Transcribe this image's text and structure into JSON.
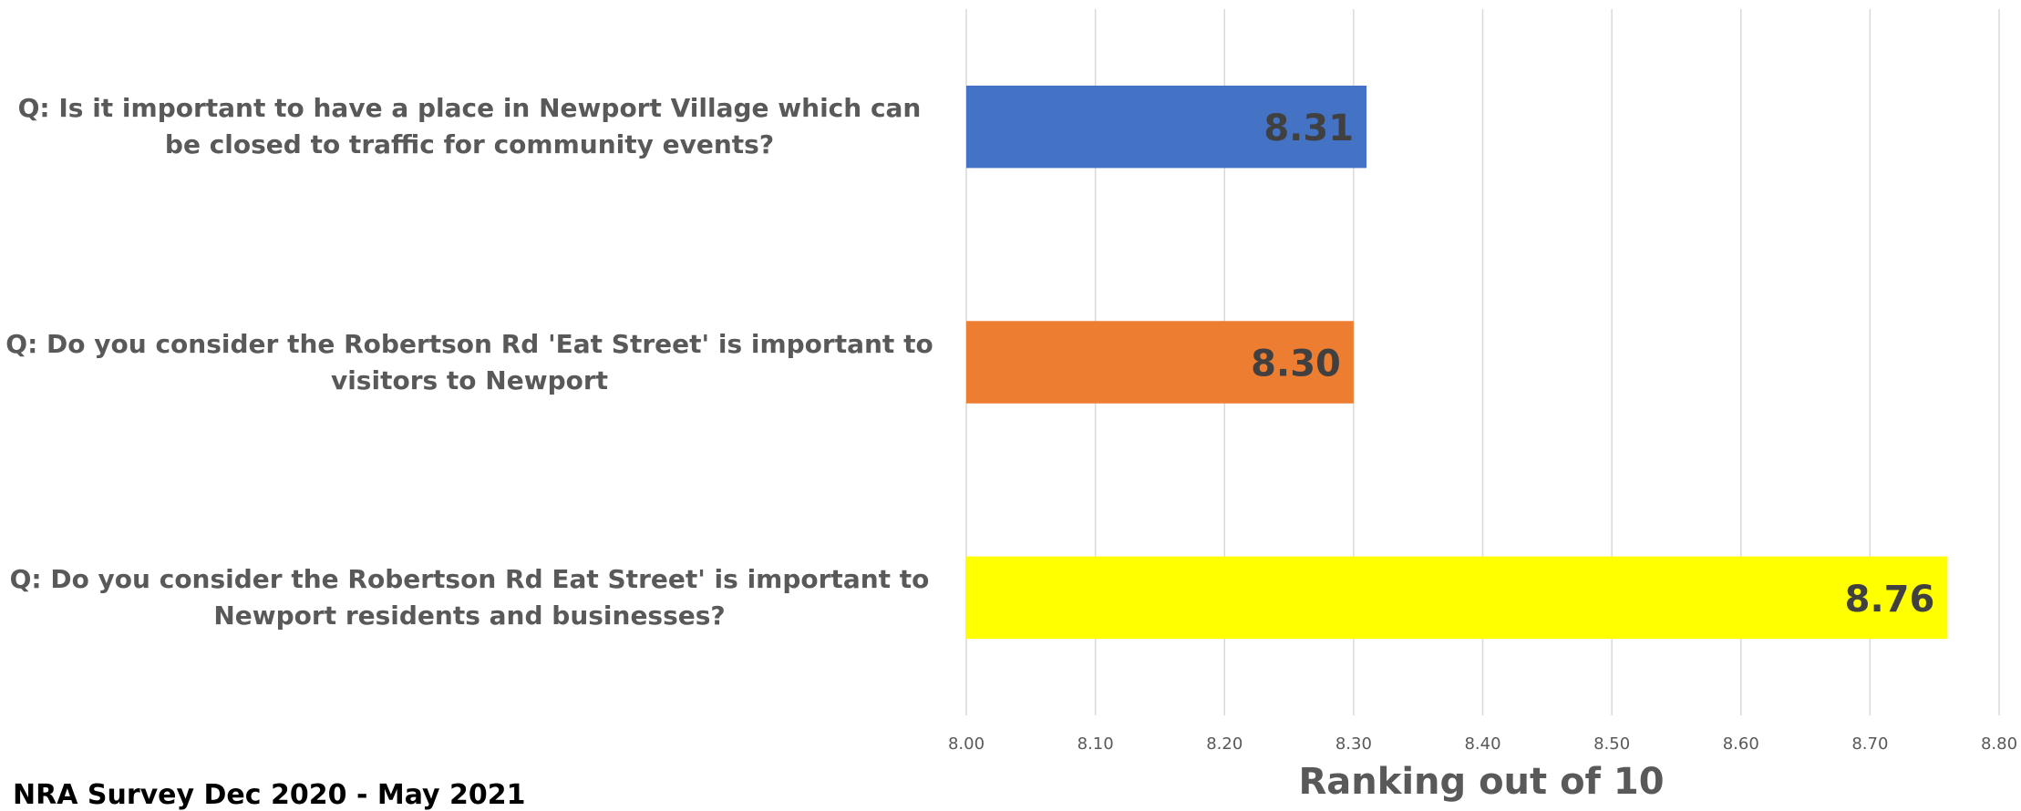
{
  "chart_data": {
    "type": "bar",
    "orientation": "horizontal",
    "categories": [
      "Q: Is it important to have a place in Newport Village which can be closed to traffic for community events?",
      "Q: Do you consider the Robertson Rd 'Eat Street' is important to visitors to Newport",
      "Q: Do you consider the Robertson Rd Eat Street' is important to Newport residents and businesses?"
    ],
    "values": [
      8.31,
      8.3,
      8.76
    ],
    "value_labels": [
      "8.31",
      "8.30",
      "8.76"
    ],
    "colors": [
      "#4472C4",
      "#ED7D31",
      "#FFFF00"
    ],
    "xlabel": "Ranking out of 10",
    "xlim": [
      8.0,
      8.8
    ],
    "xticks": [
      "8.00",
      "8.10",
      "8.20",
      "8.30",
      "8.40",
      "8.50",
      "8.60",
      "8.70",
      "8.80"
    ],
    "grid": true
  },
  "footnote": "NRA Survey Dec 2020 - May 2021"
}
